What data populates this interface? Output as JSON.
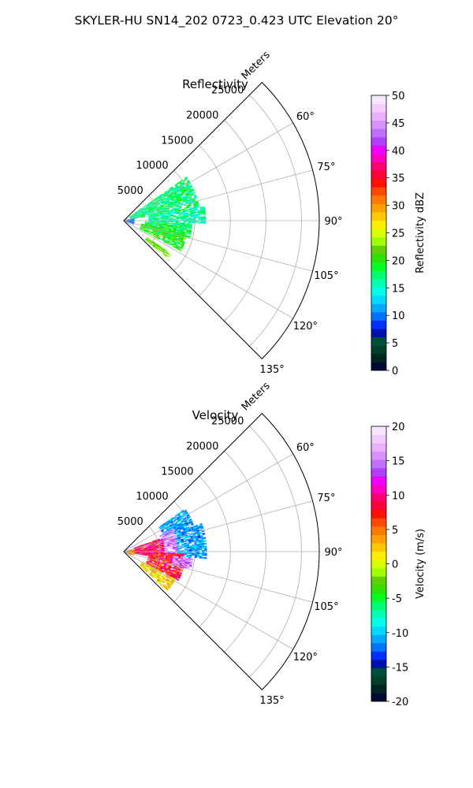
{
  "figure": {
    "suptitle": "SKYLER-HU  SN14_202  0723_0.423 UTC Elevation 20°"
  },
  "chart_data": [
    {
      "type": "heatmap",
      "subtype": "polar-sector",
      "title": "Reflectivity",
      "range_axis_label": "Meters",
      "range_ticks": [
        5000,
        10000,
        15000,
        20000,
        25000
      ],
      "range_max": 27500,
      "azimuth_ticks": [
        60,
        75,
        90,
        105,
        120,
        135
      ],
      "azimuth_range": [
        45,
        135
      ],
      "grid": true,
      "colorbar": {
        "label": "Reflectivity dBZ",
        "min": 0,
        "max": 50,
        "ticks": [
          0,
          5,
          10,
          15,
          20,
          25,
          30,
          35,
          40,
          45,
          50
        ],
        "colors": [
          "#000a33",
          "#00261f",
          "#00402a",
          "#004f3a",
          "#0010b0",
          "#0030ff",
          "#0070ff",
          "#00a8ff",
          "#00d8ff",
          "#00ffe8",
          "#00ffb0",
          "#00ff70",
          "#00ff20",
          "#30e000",
          "#60d000",
          "#a0ff00",
          "#d8ff00",
          "#ffee00",
          "#ffc800",
          "#ffa000",
          "#ff7800",
          "#ff4800",
          "#ff1000",
          "#ff0038",
          "#ff0070",
          "#ff00c0",
          "#ee00ff",
          "#b040ff",
          "#c070ff",
          "#d890ff",
          "#eab0ff",
          "#f2ccff",
          "#f8e6ff"
        ]
      },
      "echo_regions": [
        {
          "az": [
            55,
            80
          ],
          "r": [
            1000,
            10500
          ],
          "value": 17,
          "spread": 3
        },
        {
          "az": [
            80,
            92
          ],
          "r": [
            3500,
            11500
          ],
          "value": 16,
          "spread": 3
        },
        {
          "az": [
            92,
            105
          ],
          "r": [
            3000,
            9500
          ],
          "value": 18,
          "spread": 3
        },
        {
          "az": [
            100,
            118
          ],
          "r": [
            2500,
            9000
          ],
          "value": 20,
          "spread": 3
        },
        {
          "az": [
            125,
            131
          ],
          "r": [
            4000,
            8000
          ],
          "value": 22,
          "spread": 2
        },
        {
          "az": [
            80,
            110
          ],
          "r": [
            100,
            1500
          ],
          "value": 10,
          "spread": 3
        }
      ]
    },
    {
      "type": "heatmap",
      "subtype": "polar-sector",
      "title": "Velocity",
      "range_axis_label": "Meters",
      "range_ticks": [
        5000,
        10000,
        15000,
        20000,
        25000
      ],
      "range_max": 27500,
      "azimuth_ticks": [
        60,
        75,
        90,
        105,
        120,
        135
      ],
      "azimuth_range": [
        45,
        135
      ],
      "grid": true,
      "colorbar": {
        "label": "Velocity (m/s)",
        "min": -20,
        "max": 20,
        "ticks": [
          -20,
          -15,
          -10,
          -5,
          0,
          5,
          10,
          15,
          20
        ],
        "colors": [
          "#000a33",
          "#00261f",
          "#00402a",
          "#004f3a",
          "#0010b0",
          "#0030ff",
          "#0070ff",
          "#00a8ff",
          "#00d8ff",
          "#00ffe8",
          "#00ffb0",
          "#00ff70",
          "#00ff20",
          "#30e000",
          "#60d000",
          "#a0ff00",
          "#d8ff00",
          "#ffee00",
          "#ffc800",
          "#ffa000",
          "#ff7800",
          "#ff4800",
          "#ff1000",
          "#ff0038",
          "#ff0070",
          "#ff00c0",
          "#ee00ff",
          "#b040ff",
          "#c070ff",
          "#d890ff",
          "#eab0ff",
          "#f2ccff",
          "#f8e6ff"
        ]
      },
      "echo_regions": [
        {
          "az": [
            55,
            70
          ],
          "r": [
            6000,
            10500
          ],
          "value": -11,
          "spread": 2
        },
        {
          "az": [
            70,
            95
          ],
          "r": [
            7500,
            11500
          ],
          "value": -11,
          "spread": 2
        },
        {
          "az": [
            65,
            95
          ],
          "r": [
            5500,
            7500
          ],
          "value": 15,
          "spread": 3
        },
        {
          "az": [
            70,
            100
          ],
          "r": [
            1500,
            5500
          ],
          "value": 9,
          "spread": 3
        },
        {
          "az": [
            92,
            118
          ],
          "r": [
            3500,
            8500
          ],
          "value": 8,
          "spread": 4
        },
        {
          "az": [
            95,
            105
          ],
          "r": [
            7000,
            9500
          ],
          "value": 15,
          "spread": 3
        },
        {
          "az": [
            118,
            132
          ],
          "r": [
            3000,
            8000
          ],
          "value": 2,
          "spread": 3
        },
        {
          "az": [
            80,
            112
          ],
          "r": [
            100,
            1500
          ],
          "value": 4,
          "spread": 4
        }
      ]
    }
  ]
}
